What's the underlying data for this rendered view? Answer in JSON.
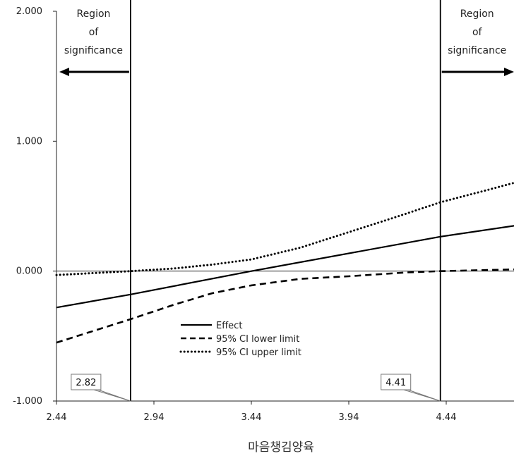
{
  "chart_data": {
    "type": "line",
    "xlabel": "마음챙김양육",
    "ylabel": "",
    "xlim": [
      2.44,
      4.84
    ],
    "ylim": [
      -1.0,
      2.0
    ],
    "x_ticks": [
      "2.44",
      "2.94",
      "3.44",
      "3.94",
      "4.44"
    ],
    "y_ticks": [
      "2.000",
      "1.000",
      "0.000",
      "-1.000"
    ],
    "y_tick_values": [
      2.0,
      1.0,
      0.0,
      -1.0
    ],
    "x_tick_values": [
      2.44,
      2.94,
      3.44,
      3.94,
      4.44
    ],
    "series": [
      {
        "name": "Effect",
        "style": "solid",
        "x": [
          2.44,
          2.82,
          3.44,
          4.41,
          4.84
        ],
        "y": [
          -0.28,
          -0.18,
          0.0,
          0.265,
          0.36
        ]
      },
      {
        "name": "95% CI lower limit",
        "style": "dashed",
        "x": [
          2.44,
          2.82,
          3.04,
          3.24,
          3.44,
          3.69,
          3.94,
          4.24,
          4.41,
          4.84
        ],
        "y": [
          -0.55,
          -0.37,
          -0.26,
          -0.17,
          -0.11,
          -0.06,
          -0.04,
          -0.01,
          0.0,
          0.015
        ]
      },
      {
        "name": "95% CI upper limit",
        "style": "dotted",
        "x": [
          2.44,
          2.82,
          3.04,
          3.24,
          3.44,
          3.69,
          3.94,
          4.19,
          4.41,
          4.64,
          4.84
        ],
        "y": [
          -0.03,
          0.0,
          0.02,
          0.05,
          0.09,
          0.18,
          0.3,
          0.42,
          0.53,
          0.62,
          0.7
        ]
      }
    ],
    "boundaries": [
      {
        "value": 2.82,
        "label": "2.82"
      },
      {
        "value": 4.41,
        "label": "4.41"
      }
    ],
    "regions": [
      {
        "side": "left",
        "lines": [
          "Region",
          "of",
          "significance"
        ]
      },
      {
        "side": "right",
        "lines": [
          "Region",
          "of",
          "significance"
        ]
      }
    ],
    "legend": {
      "placement": "center-bottom",
      "entries": [
        "Effect",
        "95% CI lower limit",
        "95% CI upper limit"
      ]
    },
    "grid": false,
    "colors": {
      "line": "#000000",
      "axis": "#222222",
      "callout_stroke": "#777777"
    }
  }
}
